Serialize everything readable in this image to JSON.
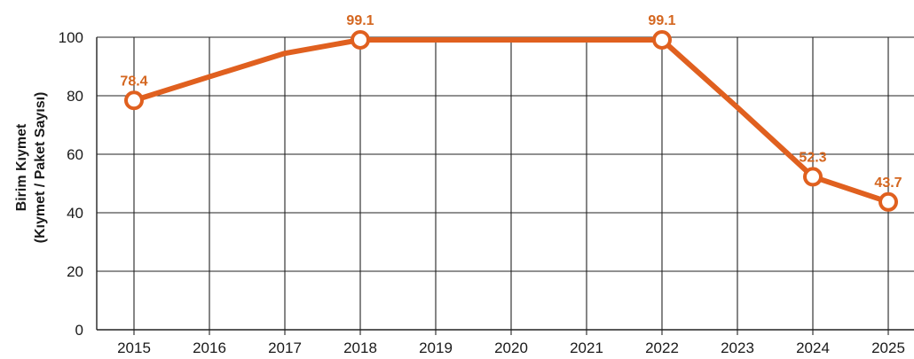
{
  "chart_data": {
    "type": "line",
    "title": "",
    "xlabel": "",
    "ylabel_lines": [
      "Birim Kıymet",
      "(Kıymet / Paket Sayısı)"
    ],
    "x": [
      "2015",
      "2016",
      "2017",
      "2018",
      "2019",
      "2020",
      "2021",
      "2022",
      "2023",
      "2024",
      "2025"
    ],
    "ylim": [
      0,
      100
    ],
    "yticks": [
      0,
      20,
      40,
      60,
      80,
      100
    ],
    "grid": true,
    "series": [
      {
        "color": "#e0601f",
        "values": [
          78.4,
          86.5,
          94.5,
          99.1,
          99.1,
          99.1,
          99.1,
          99.1,
          76.0,
          52.3,
          43.7
        ],
        "marked_points": [
          {
            "x": "2015",
            "y": 78.4,
            "label": "78.4"
          },
          {
            "x": "2018",
            "y": 99.1,
            "label": "99.1"
          },
          {
            "x": "2022",
            "y": 99.1,
            "label": "99.1"
          },
          {
            "x": "2024",
            "y": 52.3,
            "label": "52.3"
          },
          {
            "x": "2025",
            "y": 43.7,
            "label": "43.7"
          }
        ]
      }
    ],
    "colors": {
      "line": "#e0601f",
      "label": "#d4661f",
      "grid": "#222222",
      "marker_fill": "#ffffff"
    }
  }
}
